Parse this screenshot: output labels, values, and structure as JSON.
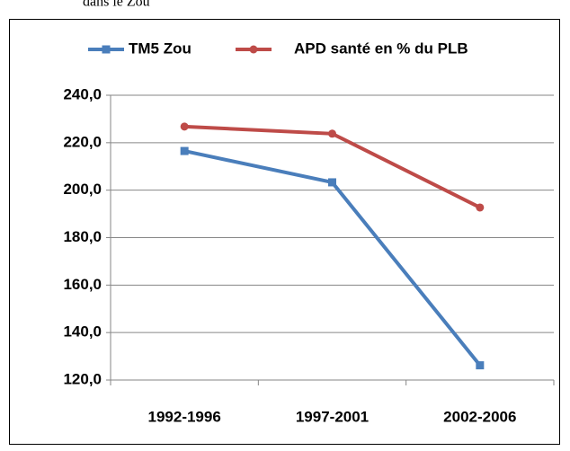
{
  "chart_data": {
    "type": "line",
    "title": "dans le Zou",
    "categories": [
      "1992-1996",
      "1997-2001",
      "2002-2006"
    ],
    "series": [
      {
        "name": "TM5 Zou",
        "color": "#4a7ebb",
        "values": [
          216.5,
          203.3,
          126.2
        ]
      },
      {
        "name": "APD santé en % du PLB",
        "color": "#be4b48",
        "values": [
          226.8,
          223.8,
          192.7
        ]
      }
    ],
    "ylim": [
      120,
      240
    ],
    "yticks": [
      {
        "value": 120,
        "label": "120,0"
      },
      {
        "value": 140,
        "label": "140,0"
      },
      {
        "value": 160,
        "label": "160,0"
      },
      {
        "value": 180,
        "label": "180,0"
      },
      {
        "value": 200,
        "label": "200,0"
      },
      {
        "value": 220,
        "label": "220,0"
      },
      {
        "value": 240,
        "label": "240,0"
      }
    ],
    "grid": true,
    "legend": "top"
  }
}
